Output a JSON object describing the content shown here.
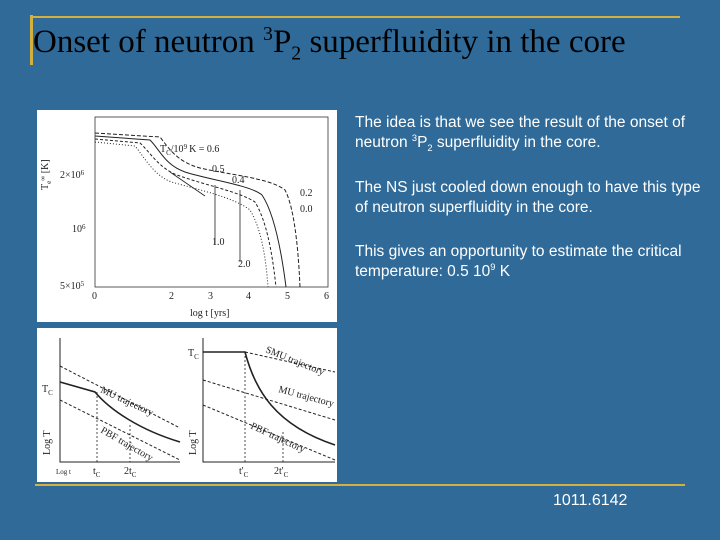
{
  "title": {
    "pre": "Onset of neutron ",
    "sup": "3",
    "main": "P",
    "sub": "2",
    "post": " superfluidity in the core"
  },
  "paragraphs": [
    {
      "pre": "The idea is that we see the result of the onset of neutron ",
      "sup": "3",
      "main": "P",
      "sub": "2",
      "post": " superfluidity in the core."
    },
    {
      "text": "The NS just cooled down enough to have this type of neutron superfluidity in the core."
    },
    {
      "pre": "This gives an opportunity to estimate the critical temperature: 0.5 10",
      "sup": "9",
      "post": " K"
    }
  ],
  "figure_top": {
    "curve_label": {
      "main": "T",
      "sub": "C",
      "mid": "/10",
      "sup": "9",
      "post": "K = 0.6"
    },
    "curve_values": [
      "0.5",
      "0.4",
      "0.2",
      "0.0",
      "1.0",
      "2.0"
    ],
    "y_label": {
      "main": "T",
      "sub": "e",
      "sup": "∞",
      "post": " [K]"
    },
    "y_ticks": [
      {
        "pre": "2×10",
        "sup": "6"
      },
      {
        "pre": "10",
        "sup": "6"
      },
      {
        "pre": "5×10",
        "sup": "5"
      }
    ],
    "x_ticks": [
      "0",
      "2",
      "3",
      "4",
      "5",
      "6"
    ],
    "x_label": "log t  [yrs]"
  },
  "figure_bottom": {
    "left": {
      "tc": {
        "main": "T",
        "sub": "C"
      },
      "mu": "MU trajectory",
      "pbf": "PBF trajectory",
      "y_label": "Log T",
      "x_label": "Log t",
      "t1": {
        "main": "t",
        "sub": "C"
      },
      "t2": {
        "main": "2t",
        "sub": "C"
      }
    },
    "right": {
      "tc": {
        "main": "T",
        "sub": "C"
      },
      "smu": "SMU trajectory",
      "mu": "MU trajectory",
      "pbf": "PBF trajectory",
      "y_label": "Log T",
      "t1": {
        "main": "t'",
        "sub": "C"
      },
      "t2": {
        "main": "2t'",
        "sub": "C"
      }
    }
  },
  "footer": "1011.6142"
}
